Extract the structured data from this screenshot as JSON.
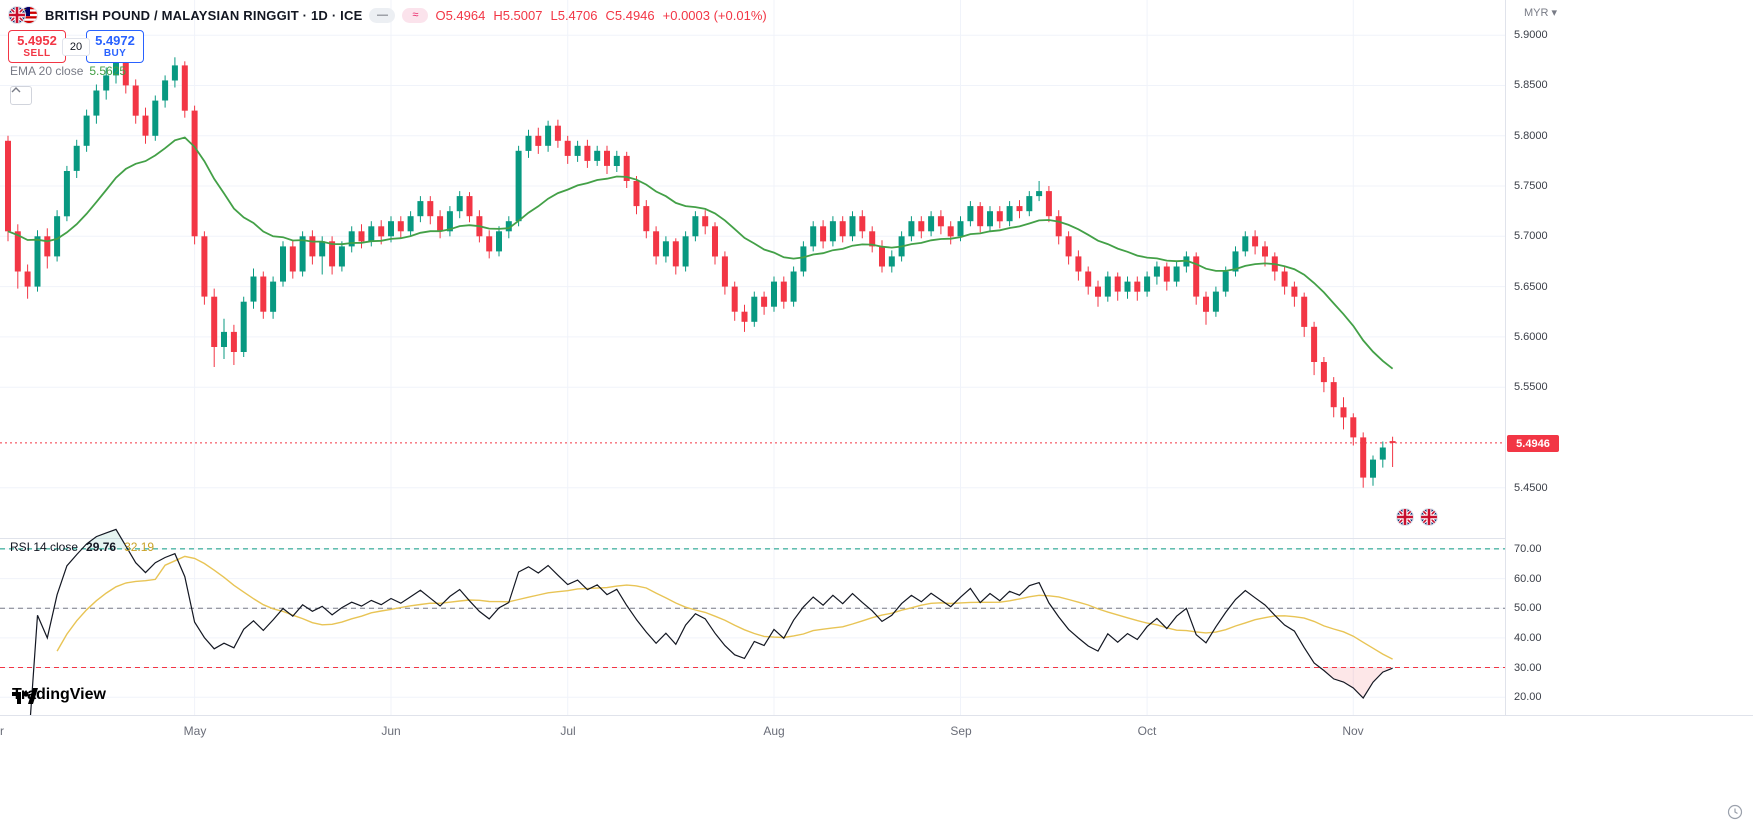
{
  "header": {
    "symbol_title": "BRITISH POUND / MALAYSIAN RINGGIT · 1D · ICE",
    "pill_line": "—",
    "pill_wave": "≈",
    "ohlc": {
      "o": "O5.4964",
      "h": "H5.5007",
      "l": "L5.4706",
      "c": "C5.4946",
      "change": "+0.0003 (+0.01%)"
    }
  },
  "trade_panel": {
    "sell_price": "5.4952",
    "sell_label": "SELL",
    "spread": "20",
    "buy_price": "5.4972",
    "buy_label": "BUY"
  },
  "indicators_legend": {
    "ema_label": "EMA 20 close",
    "ema_value": "5.5625",
    "rsi_label": "RSI 14 close",
    "rsi_value": "29.76",
    "rsi_ma_value": "32.19"
  },
  "logo_text": "TradingView",
  "axes": {
    "currency": "MYR",
    "currency_caret": "▾",
    "price_ticks": [
      "5.9000",
      "5.8500",
      "5.8000",
      "5.7500",
      "5.7000",
      "5.6500",
      "5.6000",
      "5.5500",
      "5.4500"
    ],
    "last_price": "5.4946",
    "rsi_ticks": [
      "70.00",
      "60.00",
      "50.00",
      "40.00",
      "30.00",
      "20.00"
    ],
    "time_ticks": [
      {
        "label": "r",
        "i": -0.6
      },
      {
        "label": "May",
        "i": 19
      },
      {
        "label": "Jun",
        "i": 39
      },
      {
        "label": "Jul",
        "i": 57
      },
      {
        "label": "Aug",
        "i": 78
      },
      {
        "label": "Sep",
        "i": 97
      },
      {
        "label": "Oct",
        "i": 116
      },
      {
        "label": "Nov",
        "i": 137
      }
    ]
  },
  "colors": {
    "up": "#089981",
    "down": "#f23645",
    "ema": "#43a047",
    "rsi_line": "#131722",
    "rsi_ma": "#e8c455",
    "level_70": "#089981",
    "level_50": "#787b86",
    "level_30": "#f23645",
    "badge_bg": "#f23645",
    "sell": "#f23645",
    "buy": "#2962ff",
    "grid": "#f0f3fa",
    "separator": "#e0e3eb"
  },
  "chart_data": {
    "type": "candlestick",
    "title": "British Pound / Malaysian Ringgit, 1D, ICE",
    "symbol": "GBPMYR",
    "interval": "1D",
    "ylim": [
      5.4,
      5.935
    ],
    "rsi_ylim": [
      14,
      73
    ],
    "last_close": 5.4946,
    "indicators": [
      {
        "type": "ema",
        "length": 20,
        "last_value": 5.5625
      },
      {
        "type": "rsi",
        "length": 14,
        "levels": [
          70,
          50,
          30
        ],
        "last_value": 29.76,
        "ma": {
          "type": "sma",
          "length": 14,
          "last_value": 32.19
        }
      }
    ],
    "candles": [
      [
        5.795,
        5.8,
        5.695,
        5.705
      ],
      [
        5.705,
        5.712,
        5.648,
        5.665
      ],
      [
        5.665,
        5.672,
        5.638,
        5.65
      ],
      [
        5.65,
        5.706,
        5.645,
        5.7
      ],
      [
        5.7,
        5.708,
        5.668,
        5.68
      ],
      [
        5.68,
        5.726,
        5.675,
        5.72
      ],
      [
        5.72,
        5.77,
        5.715,
        5.765
      ],
      [
        5.765,
        5.796,
        5.758,
        5.79
      ],
      [
        5.79,
        5.826,
        5.784,
        5.82
      ],
      [
        5.82,
        5.851,
        5.812,
        5.845
      ],
      [
        5.845,
        5.868,
        5.836,
        5.86
      ],
      [
        5.86,
        5.888,
        5.852,
        5.875
      ],
      [
        5.875,
        5.88,
        5.842,
        5.85
      ],
      [
        5.85,
        5.856,
        5.812,
        5.82
      ],
      [
        5.82,
        5.828,
        5.792,
        5.8
      ],
      [
        5.8,
        5.84,
        5.795,
        5.835
      ],
      [
        5.835,
        5.86,
        5.828,
        5.855
      ],
      [
        5.855,
        5.878,
        5.848,
        5.87
      ],
      [
        5.87,
        5.874,
        5.818,
        5.825
      ],
      [
        5.825,
        5.83,
        5.692,
        5.7
      ],
      [
        5.7,
        5.705,
        5.632,
        5.64
      ],
      [
        5.64,
        5.648,
        5.57,
        5.59
      ],
      [
        5.59,
        5.618,
        5.578,
        5.605
      ],
      [
        5.605,
        5.612,
        5.572,
        5.585
      ],
      [
        5.585,
        5.64,
        5.58,
        5.635
      ],
      [
        5.635,
        5.668,
        5.628,
        5.66
      ],
      [
        5.66,
        5.665,
        5.618,
        5.625
      ],
      [
        5.625,
        5.66,
        5.618,
        5.655
      ],
      [
        5.655,
        5.695,
        5.65,
        5.69
      ],
      [
        5.69,
        5.696,
        5.658,
        5.665
      ],
      [
        5.665,
        5.705,
        5.66,
        5.7
      ],
      [
        5.7,
        5.706,
        5.672,
        5.68
      ],
      [
        5.68,
        5.7,
        5.662,
        5.695
      ],
      [
        5.695,
        5.7,
        5.662,
        5.67
      ],
      [
        5.67,
        5.695,
        5.665,
        5.69
      ],
      [
        5.69,
        5.71,
        5.684,
        5.705
      ],
      [
        5.705,
        5.712,
        5.688,
        5.695
      ],
      [
        5.695,
        5.715,
        5.69,
        5.71
      ],
      [
        5.71,
        5.716,
        5.692,
        5.7
      ],
      [
        5.7,
        5.72,
        5.694,
        5.715
      ],
      [
        5.715,
        5.72,
        5.698,
        5.705
      ],
      [
        5.705,
        5.725,
        5.7,
        5.72
      ],
      [
        5.72,
        5.74,
        5.714,
        5.735
      ],
      [
        5.735,
        5.74,
        5.712,
        5.72
      ],
      [
        5.72,
        5.726,
        5.698,
        5.705
      ],
      [
        5.705,
        5.73,
        5.7,
        5.725
      ],
      [
        5.725,
        5.745,
        5.718,
        5.74
      ],
      [
        5.74,
        5.744,
        5.714,
        5.72
      ],
      [
        5.72,
        5.726,
        5.694,
        5.7
      ],
      [
        5.7,
        5.706,
        5.678,
        5.685
      ],
      [
        5.685,
        5.71,
        5.68,
        5.705
      ],
      [
        5.705,
        5.72,
        5.698,
        5.715
      ],
      [
        5.715,
        5.79,
        5.71,
        5.785
      ],
      [
        5.785,
        5.806,
        5.778,
        5.8
      ],
      [
        5.8,
        5.808,
        5.782,
        5.79
      ],
      [
        5.79,
        5.815,
        5.784,
        5.81
      ],
      [
        5.81,
        5.816,
        5.788,
        5.795
      ],
      [
        5.795,
        5.8,
        5.772,
        5.78
      ],
      [
        5.78,
        5.795,
        5.774,
        5.79
      ],
      [
        5.79,
        5.796,
        5.768,
        5.775
      ],
      [
        5.775,
        5.79,
        5.77,
        5.785
      ],
      [
        5.785,
        5.79,
        5.762,
        5.77
      ],
      [
        5.77,
        5.785,
        5.764,
        5.78
      ],
      [
        5.78,
        5.784,
        5.748,
        5.755
      ],
      [
        5.755,
        5.76,
        5.722,
        5.73
      ],
      [
        5.73,
        5.736,
        5.698,
        5.705
      ],
      [
        5.705,
        5.71,
        5.672,
        5.68
      ],
      [
        5.68,
        5.7,
        5.674,
        5.695
      ],
      [
        5.695,
        5.698,
        5.662,
        5.67
      ],
      [
        5.67,
        5.705,
        5.665,
        5.7
      ],
      [
        5.7,
        5.725,
        5.695,
        5.72
      ],
      [
        5.72,
        5.726,
        5.702,
        5.71
      ],
      [
        5.71,
        5.714,
        5.672,
        5.68
      ],
      [
        5.68,
        5.685,
        5.642,
        5.65
      ],
      [
        5.65,
        5.655,
        5.616,
        5.625
      ],
      [
        5.625,
        5.632,
        5.605,
        5.615
      ],
      [
        5.615,
        5.645,
        5.61,
        5.64
      ],
      [
        5.64,
        5.645,
        5.622,
        5.63
      ],
      [
        5.63,
        5.66,
        5.625,
        5.655
      ],
      [
        5.655,
        5.66,
        5.628,
        5.635
      ],
      [
        5.635,
        5.67,
        5.63,
        5.665
      ],
      [
        5.665,
        5.695,
        5.66,
        5.69
      ],
      [
        5.69,
        5.715,
        5.685,
        5.71
      ],
      [
        5.71,
        5.716,
        5.688,
        5.695
      ],
      [
        5.695,
        5.72,
        5.69,
        5.715
      ],
      [
        5.715,
        5.72,
        5.694,
        5.7
      ],
      [
        5.7,
        5.725,
        5.695,
        5.72
      ],
      [
        5.72,
        5.726,
        5.698,
        5.705
      ],
      [
        5.705,
        5.71,
        5.684,
        5.69
      ],
      [
        5.69,
        5.696,
        5.664,
        5.67
      ],
      [
        5.67,
        5.686,
        5.664,
        5.68
      ],
      [
        5.68,
        5.705,
        5.675,
        5.7
      ],
      [
        5.7,
        5.72,
        5.695,
        5.715
      ],
      [
        5.715,
        5.72,
        5.698,
        5.705
      ],
      [
        5.705,
        5.725,
        5.7,
        5.72
      ],
      [
        5.72,
        5.726,
        5.702,
        5.71
      ],
      [
        5.71,
        5.715,
        5.692,
        5.7
      ],
      [
        5.7,
        5.72,
        5.695,
        5.715
      ],
      [
        5.715,
        5.735,
        5.71,
        5.73
      ],
      [
        5.73,
        5.734,
        5.704,
        5.71
      ],
      [
        5.71,
        5.73,
        5.705,
        5.725
      ],
      [
        5.725,
        5.73,
        5.708,
        5.715
      ],
      [
        5.715,
        5.735,
        5.71,
        5.73
      ],
      [
        5.73,
        5.736,
        5.718,
        5.725
      ],
      [
        5.725,
        5.745,
        5.72,
        5.74
      ],
      [
        5.74,
        5.755,
        5.735,
        5.745
      ],
      [
        5.745,
        5.75,
        5.714,
        5.72
      ],
      [
        5.72,
        5.726,
        5.692,
        5.7
      ],
      [
        5.7,
        5.705,
        5.672,
        5.68
      ],
      [
        5.68,
        5.686,
        5.656,
        5.665
      ],
      [
        5.665,
        5.67,
        5.642,
        5.65
      ],
      [
        5.65,
        5.656,
        5.63,
        5.64
      ],
      [
        5.64,
        5.665,
        5.635,
        5.66
      ],
      [
        5.66,
        5.664,
        5.636,
        5.645
      ],
      [
        5.645,
        5.66,
        5.638,
        5.655
      ],
      [
        5.655,
        5.66,
        5.636,
        5.645
      ],
      [
        5.645,
        5.665,
        5.64,
        5.66
      ],
      [
        5.66,
        5.675,
        5.652,
        5.67
      ],
      [
        5.67,
        5.674,
        5.646,
        5.655
      ],
      [
        5.655,
        5.675,
        5.65,
        5.67
      ],
      [
        5.67,
        5.685,
        5.664,
        5.68
      ],
      [
        5.68,
        5.684,
        5.632,
        5.64
      ],
      [
        5.64,
        5.645,
        5.612,
        5.625
      ],
      [
        5.625,
        5.65,
        5.62,
        5.645
      ],
      [
        5.645,
        5.67,
        5.64,
        5.665
      ],
      [
        5.665,
        5.69,
        5.66,
        5.685
      ],
      [
        5.685,
        5.705,
        5.68,
        5.7
      ],
      [
        5.7,
        5.706,
        5.682,
        5.69
      ],
      [
        5.69,
        5.695,
        5.67,
        5.68
      ],
      [
        5.68,
        5.684,
        5.656,
        5.665
      ],
      [
        5.665,
        5.67,
        5.642,
        5.65
      ],
      [
        5.65,
        5.655,
        5.63,
        5.64
      ],
      [
        5.64,
        5.644,
        5.6,
        5.61
      ],
      [
        5.61,
        5.615,
        5.562,
        5.575
      ],
      [
        5.575,
        5.58,
        5.545,
        5.555
      ],
      [
        5.555,
        5.56,
        5.52,
        5.53
      ],
      [
        5.53,
        5.54,
        5.508,
        5.52
      ],
      [
        5.52,
        5.524,
        5.492,
        5.5
      ],
      [
        5.5,
        5.505,
        5.45,
        5.46
      ],
      [
        5.46,
        5.482,
        5.452,
        5.478
      ],
      [
        5.478,
        5.496,
        5.47,
        5.49
      ],
      [
        5.4964,
        5.5007,
        5.4706,
        5.4946
      ]
    ]
  }
}
